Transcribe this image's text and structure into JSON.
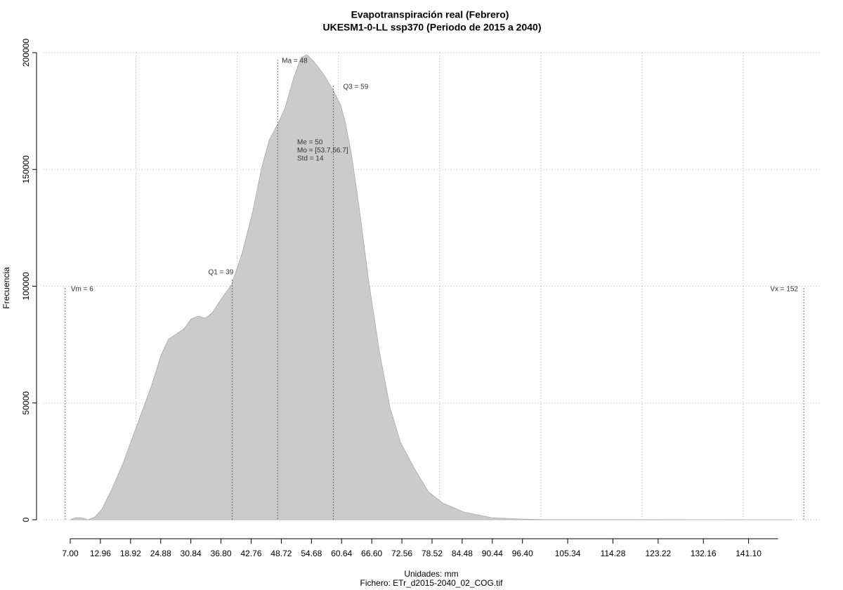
{
  "chart_data": {
    "type": "area",
    "title": "Evapotranspiración real (Febrero)",
    "subtitle": "UKESM1-0-LL ssp370 (Periodo de 2015 a 2040)",
    "x_label": "Unidades: mm",
    "caption": "Fichero: ETr_d2015-2040_02_COG.tif",
    "y_label": "Frecuencia",
    "color": "#cbcbcb",
    "x": [
      7,
      8.1,
      9.1,
      10.5,
      11.9,
      13.25,
      15.3,
      17.4,
      20.2,
      23,
      25,
      26.4,
      28.1,
      29.5,
      30.9,
      32.3,
      33.7,
      35.1,
      36.9,
      38.9,
      41,
      43.1,
      44.8,
      46.3,
      48.1,
      49.4,
      51.2,
      52.6,
      53.8,
      55.2,
      57,
      59.1,
      60.5,
      61.4,
      62.6,
      64.2,
      66,
      68.1,
      70.2,
      72.3,
      75.1,
      77.8,
      80.6,
      84.8,
      90.3,
      95.9,
      100,
      118,
      149.8
    ],
    "values": [
      0,
      900,
      900,
      0,
      1200,
      4500,
      13500,
      24000,
      40600,
      57000,
      70700,
      77300,
      79700,
      81800,
      86000,
      87200,
      86300,
      88700,
      94700,
      100700,
      114300,
      132300,
      150400,
      162400,
      169900,
      175900,
      189500,
      197900,
      199100,
      196100,
      191000,
      183500,
      177400,
      169900,
      156400,
      132300,
      102300,
      72200,
      48100,
      33100,
      21700,
      12000,
      7200,
      3300,
      900,
      300,
      100,
      50,
      0
    ],
    "xlim": [
      1.72,
      155.6
    ],
    "ylim": [
      0,
      200000
    ],
    "yticks": [
      0,
      50000,
      100000,
      150000,
      200000
    ],
    "xticks": [
      {
        "value": 7,
        "label": "7.00"
      },
      {
        "value": 12.96,
        "label": "12.96"
      },
      {
        "value": 18.92,
        "label": "18.92"
      },
      {
        "value": 24.88,
        "label": "24.88"
      },
      {
        "value": 30.84,
        "label": "30.84"
      },
      {
        "value": 36.8,
        "label": "36.80"
      },
      {
        "value": 42.76,
        "label": "42.76"
      },
      {
        "value": 48.72,
        "label": "48.72"
      },
      {
        "value": 54.68,
        "label": "54.68"
      },
      {
        "value": 60.64,
        "label": "60.64"
      },
      {
        "value": 66.6,
        "label": "66.60"
      },
      {
        "value": 72.56,
        "label": "72.56"
      },
      {
        "value": 78.52,
        "label": "78.52"
      },
      {
        "value": 84.48,
        "label": "84.48"
      },
      {
        "value": 90.44,
        "label": "90.44"
      },
      {
        "value": 96.4,
        "label": "96.40"
      },
      {
        "value": 105.34,
        "label": "105.34"
      },
      {
        "value": 114.28,
        "label": "114.28"
      },
      {
        "value": 123.22,
        "label": "123.22"
      },
      {
        "value": 132.16,
        "label": "132.16"
      },
      {
        "value": 141.1,
        "label": "141.10"
      }
    ],
    "xgrid": [
      20,
      40,
      60,
      80,
      100,
      120,
      140
    ],
    "grid": true,
    "markers": [
      {
        "label": "Vm = 6",
        "value": 6
      },
      {
        "label": "Q1 = 39",
        "value": 39
      },
      {
        "label": "Ma = 48",
        "value": 48
      },
      {
        "label": "Q3 = 59",
        "value": 59
      },
      {
        "label": "Vx = 152",
        "value": 152
      }
    ],
    "stats": [
      "Me = 50",
      "Mo = [53.7,56.7]",
      "Std = 14"
    ]
  }
}
